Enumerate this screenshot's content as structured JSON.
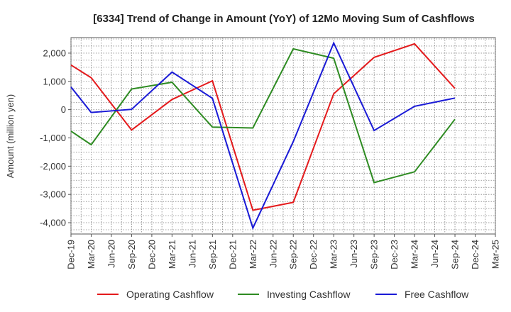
{
  "chart_data": {
    "type": "line",
    "title": "[6334]  Trend of Change in Amount (YoY) of 12Mo Moving Sum of Cashflows",
    "xlabel": "",
    "ylabel": "Amount (million yen)",
    "ylim": [
      -4400,
      2550
    ],
    "yticks": [
      2000,
      1000,
      0,
      -1000,
      -2000,
      -3000,
      -4000
    ],
    "ytick_labels": [
      "2,000",
      "1,000",
      "0",
      "-1,000",
      "-2,000",
      "-3,000",
      "-4,000"
    ],
    "categories": [
      "Dec-19",
      "Mar-20",
      "Jun-20",
      "Sep-20",
      "Dec-20",
      "Mar-21",
      "Jun-21",
      "Sep-21",
      "Dec-21",
      "Mar-22",
      "Jun-22",
      "Sep-22",
      "Dec-22",
      "Mar-23",
      "Jun-23",
      "Sep-23",
      "Dec-23",
      "Mar-24",
      "Jun-24",
      "Sep-24",
      "Dec-24",
      "Mar-25"
    ],
    "grid": true,
    "legend_position": "bottom",
    "series": [
      {
        "name": "Operating Cashflow",
        "color": "#e41a1c",
        "values": [
          1580,
          1130,
          null,
          -720,
          null,
          360,
          null,
          1020,
          null,
          -3560,
          null,
          -3280,
          null,
          560,
          null,
          1850,
          null,
          2330,
          null,
          750,
          null,
          null
        ]
      },
      {
        "name": "Investing Cashflow",
        "color": "#2e8b22",
        "values": [
          -760,
          -1240,
          null,
          730,
          null,
          970,
          null,
          -620,
          null,
          -650,
          null,
          2150,
          null,
          1820,
          null,
          -2580,
          null,
          -2200,
          null,
          -340,
          null,
          null
        ]
      },
      {
        "name": "Free Cashflow",
        "color": "#1a1ad6",
        "values": [
          800,
          -100,
          null,
          10,
          null,
          1330,
          null,
          400,
          null,
          -4190,
          null,
          -1130,
          null,
          2360,
          null,
          -740,
          null,
          120,
          null,
          410,
          null,
          null
        ]
      }
    ]
  }
}
